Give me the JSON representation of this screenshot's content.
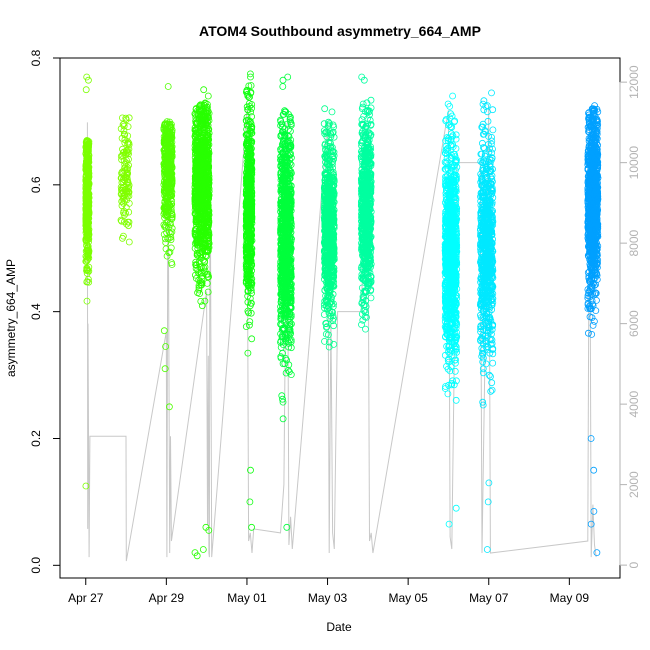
{
  "chart_data": {
    "type": "scatter",
    "title": "ATOM4 Southbound asymmetry_664_AMP",
    "xlabel": "Date",
    "ylabel": "asymmetry_664_AMP",
    "x_axis": {
      "unit": "days",
      "range": [
        "2017-04-26T08:40",
        "2017-05-10T06:10"
      ],
      "ticks": [
        "2017-04-27",
        "2017-04-29",
        "2017-05-01",
        "2017-05-03",
        "2017-05-05",
        "2017-05-07",
        "2017-05-09"
      ],
      "tick_labels": [
        "Apr 27",
        "Apr 29",
        "May 01",
        "May 03",
        "May 05",
        "May 07",
        "May 09"
      ]
    },
    "y_axis": {
      "range": [
        -0.02,
        0.8
      ],
      "ticks": [
        0.0,
        0.2,
        0.4,
        0.6,
        0.8
      ],
      "tick_labels": [
        "0.0",
        "0.2",
        "0.4",
        "0.6",
        "0.8"
      ]
    },
    "y2_axis": {
      "range": [
        -320,
        12600
      ],
      "ticks": [
        0,
        2000,
        4000,
        6000,
        8000,
        10000,
        12000
      ],
      "tick_labels": [
        "0",
        "2000",
        "4000",
        "6000",
        "8000",
        "10000",
        "12000"
      ],
      "color": "#b3b3b3"
    },
    "grid": false,
    "legend": "none",
    "clusters": [
      {
        "start": "2017-04-27T00:00",
        "end": "2017-04-27T02:00",
        "center": 0.58,
        "spread": 0.055,
        "min": 0.41,
        "max": 0.67,
        "density": 420,
        "outliers": [
          0.77,
          0.765,
          0.75,
          0.125
        ],
        "color": "#7cff00"
      },
      {
        "start": "2017-04-27T21:00",
        "end": "2017-04-28T02:00",
        "center": 0.615,
        "spread": 0.05,
        "min": 0.5,
        "max": 0.715,
        "density": 120,
        "outliers": [],
        "color": "#80ff00"
      },
      {
        "start": "2017-04-28T22:30",
        "end": "2017-04-29T03:30",
        "center": 0.62,
        "spread": 0.05,
        "min": 0.4,
        "max": 0.7,
        "density": 420,
        "outliers": [
          0.755,
          0.37,
          0.345,
          0.31,
          0.25
        ],
        "color": "#50ff00"
      },
      {
        "start": "2017-04-29T17:00",
        "end": "2017-04-30T01:30",
        "center": 0.6,
        "spread": 0.065,
        "min": 0.3,
        "max": 0.73,
        "density": 1000,
        "outliers": [
          0.75,
          0.74,
          0.06,
          0.055,
          0.025,
          0.015,
          0.02
        ],
        "color": "#28ff00"
      },
      {
        "start": "2017-04-30T23:30",
        "end": "2017-05-01T03:00",
        "center": 0.56,
        "spread": 0.075,
        "min": 0.18,
        "max": 0.76,
        "density": 650,
        "outliers": [
          0.775,
          0.77,
          0.15,
          0.1,
          0.06
        ],
        "color": "#10ff10"
      },
      {
        "start": "2017-05-01T20:00",
        "end": "2017-05-02T02:30",
        "center": 0.52,
        "spread": 0.085,
        "min": 0.08,
        "max": 0.72,
        "density": 1000,
        "outliers": [
          0.77,
          0.765,
          0.755,
          0.06
        ],
        "color": "#00ff3c"
      },
      {
        "start": "2017-05-02T22:00",
        "end": "2017-05-03T04:00",
        "center": 0.53,
        "spread": 0.065,
        "min": 0.21,
        "max": 0.7,
        "density": 750,
        "outliers": [
          0.72,
          0.715
        ],
        "color": "#00ff8c"
      },
      {
        "start": "2017-05-03T20:00",
        "end": "2017-05-04T02:00",
        "center": 0.56,
        "spread": 0.07,
        "min": 0.18,
        "max": 0.74,
        "density": 750,
        "outliers": [
          0.77,
          0.765
        ],
        "color": "#00ffa0"
      },
      {
        "start": "2017-05-05T22:00",
        "end": "2017-05-06T05:00",
        "center": 0.49,
        "spread": 0.085,
        "min": 0.18,
        "max": 0.73,
        "density": 1000,
        "outliers": [
          0.74,
          0.09,
          0.065
        ],
        "color": "#00ffff"
      },
      {
        "start": "2017-05-06T19:00",
        "end": "2017-05-07T02:30",
        "center": 0.5,
        "spread": 0.08,
        "min": 0.15,
        "max": 0.74,
        "density": 750,
        "outliers": [
          0.745,
          0.13,
          0.1,
          0.025
        ],
        "color": "#00e8ff"
      },
      {
        "start": "2017-05-09T11:00",
        "end": "2017-05-09T17:00",
        "center": 0.57,
        "spread": 0.07,
        "min": 0.25,
        "max": 0.72,
        "density": 1000,
        "outliers": [
          0.725,
          0.72,
          0.2,
          0.15,
          0.085,
          0.065,
          0.02
        ],
        "color": "#00a0ff"
      }
    ],
    "secondary_series": {
      "axis": "y2",
      "color": "#c8c8c8",
      "points": [
        [
          "2017-04-27T01:00",
          11000
        ],
        [
          "2017-04-27T01:10",
          900
        ],
        [
          "2017-04-27T01:20",
          6000
        ],
        [
          "2017-04-27T02:00",
          200
        ],
        [
          "2017-04-27T02:30",
          3200
        ],
        [
          "2017-04-28T00:00",
          3200
        ],
        [
          "2017-04-28T00:10",
          100
        ],
        [
          "2017-04-29T00:00",
          5800
        ],
        [
          "2017-04-29T00:20",
          200
        ],
        [
          "2017-04-29T01:00",
          10800
        ],
        [
          "2017-04-29T02:00",
          300
        ],
        [
          "2017-04-29T02:30",
          3200
        ],
        [
          "2017-04-29T03:00",
          600
        ],
        [
          "2017-04-30T00:00",
          6800
        ],
        [
          "2017-04-30T00:30",
          1000
        ],
        [
          "2017-04-30T01:00",
          5200
        ],
        [
          "2017-04-30T01:20",
          300
        ],
        [
          "2017-04-30T01:40",
          200
        ],
        [
          "2017-04-30T02:00",
          11400
        ],
        [
          "2017-04-30T03:00",
          200
        ],
        [
          "2017-05-01T00:00",
          11300
        ],
        [
          "2017-05-01T01:00",
          600
        ],
        [
          "2017-05-01T02:00",
          800
        ],
        [
          "2017-05-01T03:00",
          300
        ],
        [
          "2017-05-01T04:00",
          900
        ],
        [
          "2017-05-01T20:00",
          800
        ],
        [
          "2017-05-01T22:00",
          2000
        ],
        [
          "2017-05-02T00:00",
          11000
        ],
        [
          "2017-05-02T01:00",
          500
        ],
        [
          "2017-05-02T02:00",
          1200
        ],
        [
          "2017-05-02T03:00",
          400
        ],
        [
          "2017-05-03T00:00",
          11000
        ],
        [
          "2017-05-03T01:00",
          300
        ],
        [
          "2017-05-03T02:00",
          6200
        ],
        [
          "2017-05-03T03:00",
          800
        ],
        [
          "2017-05-03T04:00",
          400
        ],
        [
          "2017-05-03T06:00",
          6300
        ],
        [
          "2017-05-03T20:00",
          6300
        ],
        [
          "2017-05-04T00:00",
          10500
        ],
        [
          "2017-05-04T01:00",
          600
        ],
        [
          "2017-05-04T02:00",
          800
        ],
        [
          "2017-05-04T03:00",
          300
        ],
        [
          "2017-05-06T00:00",
          11300
        ],
        [
          "2017-05-06T01:00",
          700
        ],
        [
          "2017-05-06T02:00",
          400
        ],
        [
          "2017-05-06T05:00",
          10000
        ],
        [
          "2017-05-06T19:00",
          10000
        ],
        [
          "2017-05-06T20:00",
          300
        ],
        [
          "2017-05-07T00:00",
          11400
        ],
        [
          "2017-05-07T01:00",
          300
        ],
        [
          "2017-05-09T11:00",
          600
        ],
        [
          "2017-05-09T12:00",
          11200
        ],
        [
          "2017-05-09T13:00",
          200
        ],
        [
          "2017-05-09T14:00",
          1500
        ],
        [
          "2017-05-09T15:00",
          500
        ],
        [
          "2017-05-09T16:00",
          200
        ]
      ]
    }
  }
}
